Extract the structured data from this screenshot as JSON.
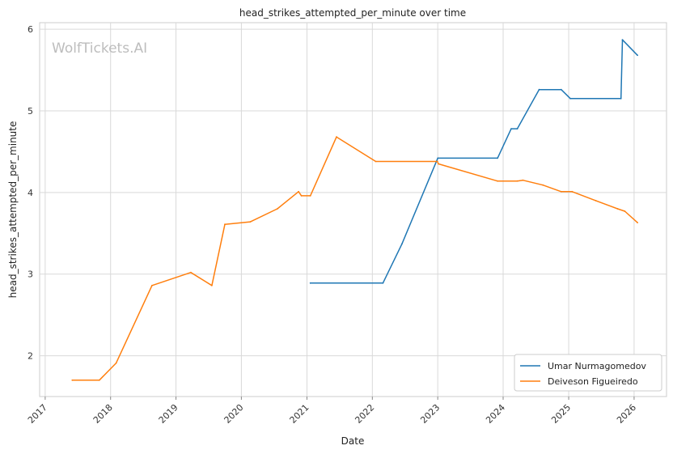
{
  "chart_data": {
    "type": "line",
    "title": "head_strikes_attempted_per_minute over time",
    "xlabel": "Date",
    "ylabel": "head_strikes_attempted_per_minute",
    "xlim": [
      "2016-12-01",
      "2026-07-01"
    ],
    "ylim": [
      1.5,
      6.08
    ],
    "x_tick_labels": [
      "2017",
      "2018",
      "2019",
      "2020",
      "2021",
      "2022",
      "2023",
      "2024",
      "2025",
      "2026"
    ],
    "y_tick_labels": [
      "2",
      "3",
      "4",
      "5",
      "6"
    ],
    "y_ticks": [
      2,
      3,
      4,
      5,
      6
    ],
    "grid": true,
    "legend_position": "bottom-right",
    "watermark": "WolfTickets.AI",
    "series": [
      {
        "name": "Umar Nurmagomedov",
        "color": "#1f77b4",
        "points": [
          [
            "2021-01-20",
            2.89
          ],
          [
            "2022-03-01",
            2.89
          ],
          [
            "2022-06-15",
            3.37
          ],
          [
            "2023-01-01",
            4.42
          ],
          [
            "2023-12-01",
            4.42
          ],
          [
            "2024-02-15",
            4.78
          ],
          [
            "2024-03-20",
            4.78
          ],
          [
            "2024-07-20",
            5.26
          ],
          [
            "2024-11-20",
            5.26
          ],
          [
            "2025-01-10",
            5.15
          ],
          [
            "2025-10-20",
            5.15
          ],
          [
            "2025-10-28",
            5.87
          ],
          [
            "2026-01-20",
            5.68
          ]
        ]
      },
      {
        "name": "Deiveson Figueiredo",
        "color": "#ff7f0e",
        "points": [
          [
            "2017-06-01",
            1.7
          ],
          [
            "2017-10-30",
            1.7
          ],
          [
            "2018-02-01",
            1.91
          ],
          [
            "2018-08-20",
            2.86
          ],
          [
            "2019-03-25",
            3.02
          ],
          [
            "2019-07-20",
            2.86
          ],
          [
            "2019-10-01",
            3.61
          ],
          [
            "2020-02-20",
            3.64
          ],
          [
            "2020-07-20",
            3.8
          ],
          [
            "2020-11-15",
            4.01
          ],
          [
            "2020-12-01",
            3.96
          ],
          [
            "2021-01-20",
            3.96
          ],
          [
            "2021-06-15",
            4.68
          ],
          [
            "2022-01-20",
            4.38
          ],
          [
            "2022-12-30",
            4.38
          ],
          [
            "2023-01-05",
            4.35
          ],
          [
            "2023-11-30",
            4.14
          ],
          [
            "2024-03-20",
            4.14
          ],
          [
            "2024-04-20",
            4.15
          ],
          [
            "2024-08-10",
            4.09
          ],
          [
            "2024-11-20",
            4.01
          ],
          [
            "2025-01-20",
            4.01
          ],
          [
            "2025-06-01",
            3.9
          ],
          [
            "2025-10-01",
            3.8
          ],
          [
            "2025-11-10",
            3.77
          ],
          [
            "2026-01-20",
            3.63
          ]
        ]
      }
    ]
  }
}
